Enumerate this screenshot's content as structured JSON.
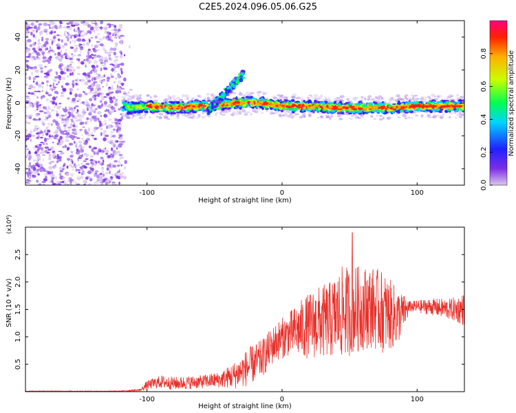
{
  "title": "C2E5.2024.096.05.06.G25",
  "chart_data": [
    {
      "type": "heatmap",
      "xlabel": "Height of straight line (km)",
      "ylabel": "Frequency (Hz)",
      "xlim": [
        -190,
        135
      ],
      "ylim": [
        -50,
        50
      ],
      "x_ticks": [
        -100,
        0,
        100
      ],
      "x_tick_labels": [
        "-100",
        "0",
        "100"
      ],
      "y_ticks": [
        -40,
        -20,
        0,
        20,
        40
      ],
      "y_tick_labels": [
        "-40",
        "-20",
        "0",
        "20",
        "40"
      ],
      "grid": false,
      "colorbar": {
        "label": "Normalized spectral amplitude",
        "range": [
          0,
          1
        ],
        "ticks": [
          0.0,
          0.2,
          0.4,
          0.6,
          0.8
        ],
        "tick_labels": [
          "0.0",
          "0.2",
          "0.4",
          "0.6",
          "0.8"
        ],
        "colormap": [
          "#dcc8f0",
          "#7d2ee6",
          "#2020ff",
          "#00d4ff",
          "#00ff50",
          "#c8ff00",
          "#ffb000",
          "#ff2000",
          "#ff0080"
        ]
      },
      "features": {
        "noise_region_x": [
          -190,
          -118
        ],
        "signal_band": [
          {
            "x": -115,
            "f": -3
          },
          {
            "x": -100,
            "f": -2
          },
          {
            "x": -80,
            "f": -3
          },
          {
            "x": -60,
            "f": -2
          },
          {
            "x": -45,
            "f": -1
          },
          {
            "x": -30,
            "f": 0
          },
          {
            "x": -15,
            "f": 0
          },
          {
            "x": 0,
            "f": -2
          },
          {
            "x": 20,
            "f": -2
          },
          {
            "x": 40,
            "f": -3
          },
          {
            "x": 60,
            "f": -3
          },
          {
            "x": 80,
            "f": -3
          },
          {
            "x": 100,
            "f": -2
          },
          {
            "x": 135,
            "f": -2
          }
        ],
        "chirp_x": [
          -55,
          -28
        ],
        "chirp_f": [
          -5,
          18
        ]
      }
    },
    {
      "type": "line",
      "xlabel": "Height of straight line (km)",
      "ylabel": "SNR (10 * v/v)",
      "y_scale_label": "(x10⁴)",
      "xlim": [
        -190,
        135
      ],
      "ylim": [
        0,
        3.0
      ],
      "x_ticks": [
        -100,
        0,
        100
      ],
      "x_tick_labels": [
        "-100",
        "0",
        "100"
      ],
      "y_ticks": [
        0.5,
        1.0,
        1.5,
        2.0,
        2.5
      ],
      "y_tick_labels": [
        "0.5",
        "1.0",
        "1.5",
        "2.0",
        "2.5"
      ],
      "grid": false,
      "series": [
        {
          "color": "#e8302a",
          "envelope_x": [
            -190,
            -120,
            -105,
            -100,
            -90,
            -80,
            -60,
            -45,
            -35,
            -25,
            -15,
            -5,
            5,
            15,
            25,
            35,
            45,
            55,
            65,
            75,
            85,
            95,
            110,
            125,
            135
          ],
          "envelope_center": [
            0.01,
            0.01,
            0.03,
            0.12,
            0.18,
            0.15,
            0.18,
            0.22,
            0.3,
            0.45,
            0.6,
            0.9,
            1.05,
            1.15,
            1.25,
            1.3,
            1.45,
            1.5,
            1.55,
            1.45,
            1.35,
            1.55,
            1.55,
            1.5,
            1.5
          ],
          "envelope_amp": [
            0.005,
            0.005,
            0.02,
            0.08,
            0.12,
            0.12,
            0.12,
            0.15,
            0.25,
            0.35,
            0.35,
            0.35,
            0.4,
            0.55,
            0.65,
            0.7,
            0.85,
            0.8,
            0.75,
            0.75,
            0.55,
            0.1,
            0.15,
            0.2,
            0.3
          ],
          "peak": {
            "x": 52,
            "y": 2.9
          }
        }
      ]
    }
  ]
}
